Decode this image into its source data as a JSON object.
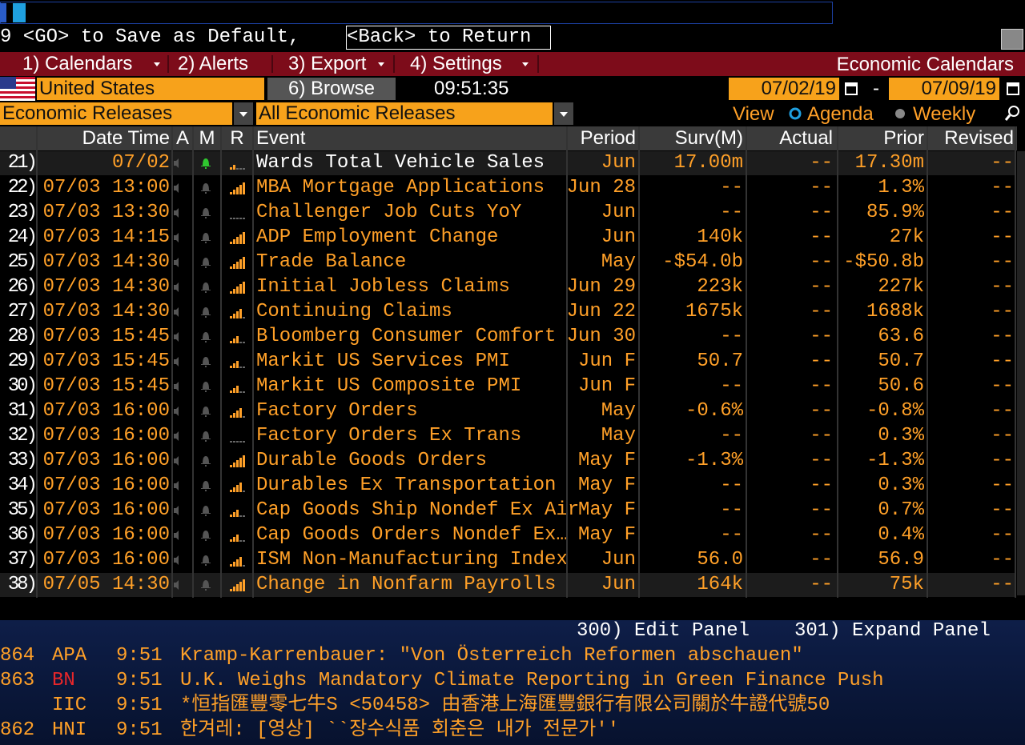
{
  "command_line": {
    "hint": "9 <GO> to Save as Default,",
    "back": "<Back> to Return"
  },
  "menu": {
    "items": [
      "1) Calendars",
      "2) Alerts",
      "3) Export",
      "4) Settings"
    ],
    "title": "Economic Calendars"
  },
  "toolbar": {
    "country": "United States",
    "browse": "6) Browse",
    "time": "09:51:35",
    "start_date": "07/02/19",
    "separator": "-",
    "end_date": "07/09/19"
  },
  "filters": {
    "category": "Economic Releases",
    "subcategory": "All Economic Releases",
    "view_label": "View",
    "view_options": [
      "Agenda",
      "Weekly"
    ]
  },
  "table": {
    "columns": [
      "Date Time",
      "A",
      "M",
      "R",
      "Event",
      "Period",
      "Surv(M)",
      "Actual",
      "Prior",
      "Revised"
    ],
    "rows": [
      {
        "number": "21)",
        "datetime": "07/02",
        "relevance": 2,
        "event": "Wards Total Vehicle Sales",
        "period": "Jun",
        "survey": "17.00m",
        "actual": "--",
        "prior": "17.30m",
        "revised": "--"
      },
      {
        "number": "22)",
        "datetime": "07/03 13:00",
        "relevance": 5,
        "event": "MBA Mortgage Applications",
        "period": "Jun 28",
        "survey": "--",
        "actual": "--",
        "prior": "1.3%",
        "revised": "--"
      },
      {
        "number": "23)",
        "datetime": "07/03 13:30",
        "relevance": 0,
        "event": "Challenger Job Cuts YoY",
        "period": "Jun",
        "survey": "--",
        "actual": "--",
        "prior": "85.9%",
        "revised": "--"
      },
      {
        "number": "24)",
        "datetime": "07/03 14:15",
        "relevance": 5,
        "event": "ADP Employment Change",
        "period": "Jun",
        "survey": "140k",
        "actual": "--",
        "prior": "27k",
        "revised": "--"
      },
      {
        "number": "25)",
        "datetime": "07/03 14:30",
        "relevance": 5,
        "event": "Trade Balance",
        "period": "May",
        "survey": "-$54.0b",
        "actual": "--",
        "prior": "-$50.8b",
        "revised": "--"
      },
      {
        "number": "26)",
        "datetime": "07/03 14:30",
        "relevance": 5,
        "event": "Initial Jobless Claims",
        "period": "Jun 29",
        "survey": "223k",
        "actual": "--",
        "prior": "227k",
        "revised": "--"
      },
      {
        "number": "27)",
        "datetime": "07/03 14:30",
        "relevance": 4,
        "event": "Continuing Claims",
        "period": "Jun 22",
        "survey": "1675k",
        "actual": "--",
        "prior": "1688k",
        "revised": "--"
      },
      {
        "number": "28)",
        "datetime": "07/03 15:45",
        "relevance": 3,
        "event": "Bloomberg Consumer Comfort",
        "period": "Jun 30",
        "survey": "--",
        "actual": "--",
        "prior": "63.6",
        "revised": "--"
      },
      {
        "number": "29)",
        "datetime": "07/03 15:45",
        "relevance": 3,
        "event": "Markit US Services PMI",
        "period": "Jun F",
        "survey": "50.7",
        "actual": "--",
        "prior": "50.7",
        "revised": "--"
      },
      {
        "number": "30)",
        "datetime": "07/03 15:45",
        "relevance": 3,
        "event": "Markit US Composite PMI",
        "period": "Jun F",
        "survey": "--",
        "actual": "--",
        "prior": "50.6",
        "revised": "--"
      },
      {
        "number": "31)",
        "datetime": "07/03 16:00",
        "relevance": 4,
        "event": "Factory Orders",
        "period": "May",
        "survey": "-0.6%",
        "actual": "--",
        "prior": "-0.8%",
        "revised": "--"
      },
      {
        "number": "32)",
        "datetime": "07/03 16:00",
        "relevance": 0,
        "event": "Factory Orders Ex Trans",
        "period": "May",
        "survey": "--",
        "actual": "--",
        "prior": "0.3%",
        "revised": "--"
      },
      {
        "number": "33)",
        "datetime": "07/03 16:00",
        "relevance": 5,
        "event": "Durable Goods Orders",
        "period": "May F",
        "survey": "-1.3%",
        "actual": "--",
        "prior": "-1.3%",
        "revised": "--"
      },
      {
        "number": "34)",
        "datetime": "07/03 16:00",
        "relevance": 4,
        "event": "Durables Ex Transportation",
        "period": "May F",
        "survey": "--",
        "actual": "--",
        "prior": "0.3%",
        "revised": "--"
      },
      {
        "number": "35)",
        "datetime": "07/03 16:00",
        "relevance": 3,
        "event": "Cap Goods Ship Nondef Ex Air",
        "period": "May F",
        "survey": "--",
        "actual": "--",
        "prior": "0.7%",
        "revised": "--"
      },
      {
        "number": "36)",
        "datetime": "07/03 16:00",
        "relevance": 3,
        "event": "Cap Goods Orders Nondef Ex…",
        "period": "May F",
        "survey": "--",
        "actual": "--",
        "prior": "0.4%",
        "revised": "--"
      },
      {
        "number": "37)",
        "datetime": "07/03 16:00",
        "relevance": 4,
        "event": "ISM Non-Manufacturing Index",
        "period": "Jun",
        "survey": "56.0",
        "actual": "--",
        "prior": "56.9",
        "revised": "--"
      },
      {
        "number": "38)",
        "datetime": "07/05 14:30",
        "relevance": 5,
        "event": "Change in Nonfarm Payrolls",
        "period": "Jun",
        "survey": "164k",
        "actual": "--",
        "prior": "75k",
        "revised": "--"
      }
    ]
  },
  "panel": {
    "edit": "300) Edit Panel",
    "expand": "301) Expand Panel"
  },
  "news": [
    {
      "id": "864",
      "source": "APA",
      "time": "9:51",
      "headline": "Kramp-Karrenbauer: \"Von Österreich Reformen abschauen\""
    },
    {
      "id": "863",
      "source": "BN",
      "time": "9:51",
      "headline": "U.K. Weighs Mandatory Climate Reporting in Green Finance Push"
    },
    {
      "source": "IIC",
      "time": "9:51",
      "headline": "*恒指匯豐零七牛S <50458>  由香港上海匯豐銀行有限公司關於牛證代號50"
    },
    {
      "id": "862",
      "source": "HNI",
      "time": "9:51",
      "headline": "한겨레: [영상] ``장수식품 회춘은 내가 전문가''"
    }
  ]
}
